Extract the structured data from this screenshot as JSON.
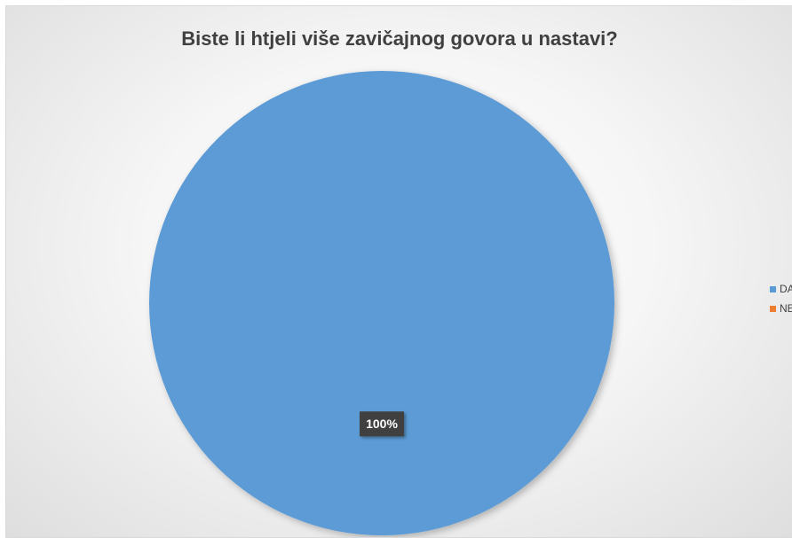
{
  "chart_data": {
    "type": "pie",
    "title": "Biste li htjeli više zavičajnog govora u nastavi?",
    "categories": [
      "DA",
      "NE"
    ],
    "values": [
      100,
      0
    ],
    "data_labels": [
      "100%",
      ""
    ],
    "colors": [
      "#5b9bd5",
      "#ed7d31"
    ],
    "legend": "right"
  }
}
